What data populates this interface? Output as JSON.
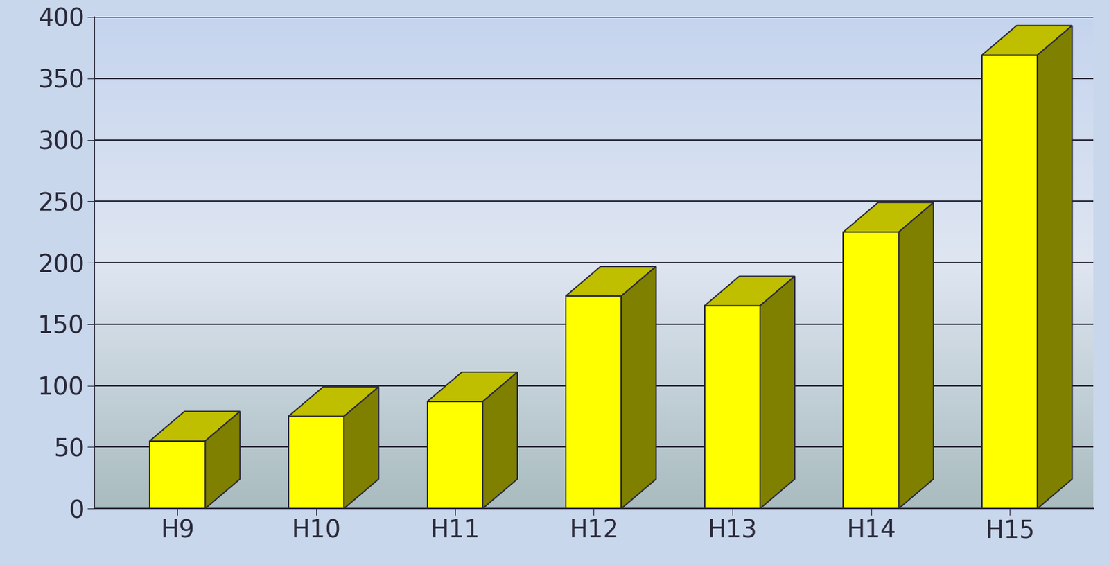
{
  "chart_data": {
    "type": "bar",
    "categories": [
      "H9",
      "H10",
      "H11",
      "H12",
      "H13",
      "H14",
      "H15"
    ],
    "values": [
      55,
      75,
      87,
      173,
      165,
      225,
      369
    ],
    "color": "#ffff00",
    "ylim": [
      0,
      400
    ],
    "yticks": [
      0,
      50,
      100,
      150,
      200,
      250,
      300,
      350,
      400
    ],
    "grid": true
  }
}
